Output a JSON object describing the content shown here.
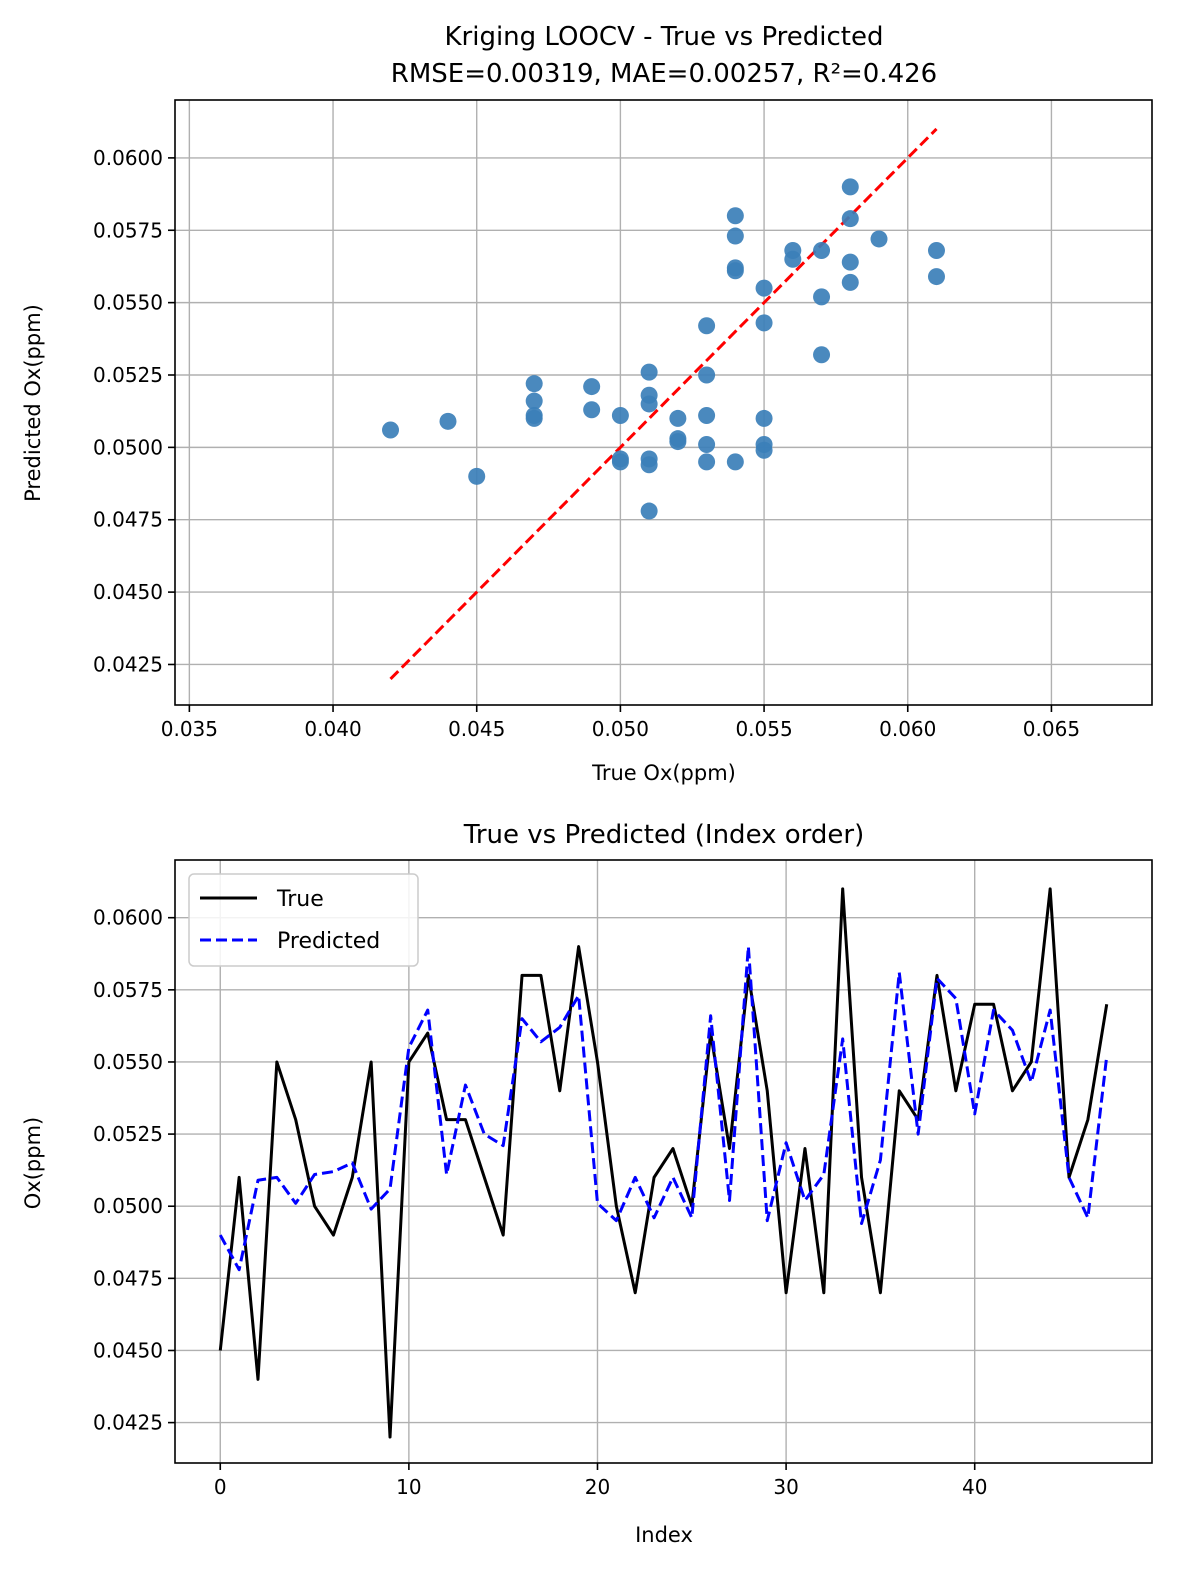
{
  "chart_data": [
    {
      "type": "scatter",
      "title": "Kriging LOOCV - True vs Predicted",
      "subtitle": "RMSE=0.00319, MAE=0.00257, R²=0.426",
      "xlabel": "True Ox(ppm)",
      "ylabel": "Predicted Ox(ppm)",
      "xlim": [
        0.0345,
        0.0685
      ],
      "ylim": [
        0.0411,
        0.062
      ],
      "xticks": [
        "0.035",
        "0.040",
        "0.045",
        "0.050",
        "0.055",
        "0.060",
        "0.065"
      ],
      "yticks": [
        "0.0425",
        "0.0450",
        "0.0475",
        "0.0500",
        "0.0525",
        "0.0550",
        "0.0575",
        "0.0600"
      ],
      "grid": true,
      "point_color": "#3b7fb8",
      "reference_line": {
        "x": [
          0.042,
          0.061
        ],
        "y": [
          0.042,
          0.061
        ],
        "color": "#ff0000",
        "style": "dashed"
      },
      "points": [
        [
          0.042,
          0.0506
        ],
        [
          0.044,
          0.0509
        ],
        [
          0.045,
          0.049
        ],
        [
          0.047,
          0.0522
        ],
        [
          0.047,
          0.0516
        ],
        [
          0.047,
          0.0511
        ],
        [
          0.047,
          0.051
        ],
        [
          0.049,
          0.0521
        ],
        [
          0.049,
          0.0513
        ],
        [
          0.05,
          0.0511
        ],
        [
          0.05,
          0.0496
        ],
        [
          0.05,
          0.0495
        ],
        [
          0.051,
          0.0526
        ],
        [
          0.051,
          0.0518
        ],
        [
          0.051,
          0.0515
        ],
        [
          0.051,
          0.0496
        ],
        [
          0.051,
          0.0494
        ],
        [
          0.051,
          0.0478
        ],
        [
          0.052,
          0.051
        ],
        [
          0.052,
          0.0503
        ],
        [
          0.052,
          0.0502
        ],
        [
          0.053,
          0.0542
        ],
        [
          0.053,
          0.0525
        ],
        [
          0.053,
          0.0511
        ],
        [
          0.053,
          0.0501
        ],
        [
          0.053,
          0.0495
        ],
        [
          0.054,
          0.058
        ],
        [
          0.054,
          0.0573
        ],
        [
          0.054,
          0.0562
        ],
        [
          0.054,
          0.0561
        ],
        [
          0.054,
          0.0495
        ],
        [
          0.055,
          0.0555
        ],
        [
          0.055,
          0.0543
        ],
        [
          0.055,
          0.051
        ],
        [
          0.055,
          0.0501
        ],
        [
          0.055,
          0.0499
        ],
        [
          0.056,
          0.0568
        ],
        [
          0.056,
          0.0565
        ],
        [
          0.057,
          0.0568
        ],
        [
          0.057,
          0.0552
        ],
        [
          0.057,
          0.0532
        ],
        [
          0.058,
          0.059
        ],
        [
          0.058,
          0.0579
        ],
        [
          0.058,
          0.0564
        ],
        [
          0.058,
          0.0557
        ],
        [
          0.059,
          0.0572
        ],
        [
          0.061,
          0.0568
        ],
        [
          0.061,
          0.0559
        ]
      ]
    },
    {
      "type": "line",
      "title": "True vs Predicted (Index order)",
      "xlabel": "Index",
      "ylabel": "Ox(ppm)",
      "xlim": [
        -2.4,
        49.4
      ],
      "ylim": [
        0.0411,
        0.062
      ],
      "xticks": [
        "0",
        "10",
        "20",
        "30",
        "40"
      ],
      "yticks": [
        "0.0425",
        "0.0450",
        "0.0475",
        "0.0500",
        "0.0525",
        "0.0550",
        "0.0575",
        "0.0600"
      ],
      "grid": true,
      "legend_position": "upper-left",
      "x": [
        0,
        1,
        2,
        3,
        4,
        5,
        6,
        7,
        8,
        9,
        10,
        11,
        12,
        13,
        14,
        15,
        16,
        17,
        18,
        19,
        20,
        21,
        22,
        23,
        24,
        25,
        26,
        27,
        28,
        29,
        30,
        31,
        32,
        33,
        34,
        35,
        36,
        37,
        38,
        39,
        40,
        41,
        42,
        43,
        44,
        45,
        46,
        47
      ],
      "series": [
        {
          "name": "True",
          "color": "#000000",
          "style": "solid",
          "values": [
            0.045,
            0.051,
            0.044,
            0.055,
            0.053,
            0.05,
            0.049,
            0.051,
            0.055,
            0.042,
            0.055,
            0.056,
            0.053,
            0.053,
            0.051,
            0.049,
            0.058,
            0.058,
            0.054,
            0.059,
            0.055,
            0.05,
            0.047,
            0.051,
            0.052,
            0.05,
            0.056,
            0.052,
            0.058,
            0.054,
            0.047,
            0.052,
            0.047,
            0.061,
            0.051,
            0.047,
            0.054,
            0.053,
            0.058,
            0.054,
            0.057,
            0.057,
            0.054,
            0.055,
            0.061,
            0.051,
            0.053,
            0.057
          ]
        },
        {
          "name": "Predicted",
          "color": "#0000ff",
          "style": "dashed",
          "values": [
            0.049,
            0.0478,
            0.0509,
            0.051,
            0.0501,
            0.0511,
            0.0512,
            0.0515,
            0.0499,
            0.0506,
            0.0555,
            0.0568,
            0.0511,
            0.0542,
            0.0525,
            0.0521,
            0.0565,
            0.0557,
            0.0562,
            0.0573,
            0.0501,
            0.0495,
            0.051,
            0.0496,
            0.051,
            0.0496,
            0.0566,
            0.0502,
            0.059,
            0.0495,
            0.0522,
            0.0502,
            0.0511,
            0.0558,
            0.0494,
            0.0516,
            0.0581,
            0.0525,
            0.0579,
            0.0572,
            0.0532,
            0.0568,
            0.0561,
            0.0543,
            0.0568,
            0.051,
            0.0496,
            0.0552
          ]
        }
      ]
    }
  ]
}
